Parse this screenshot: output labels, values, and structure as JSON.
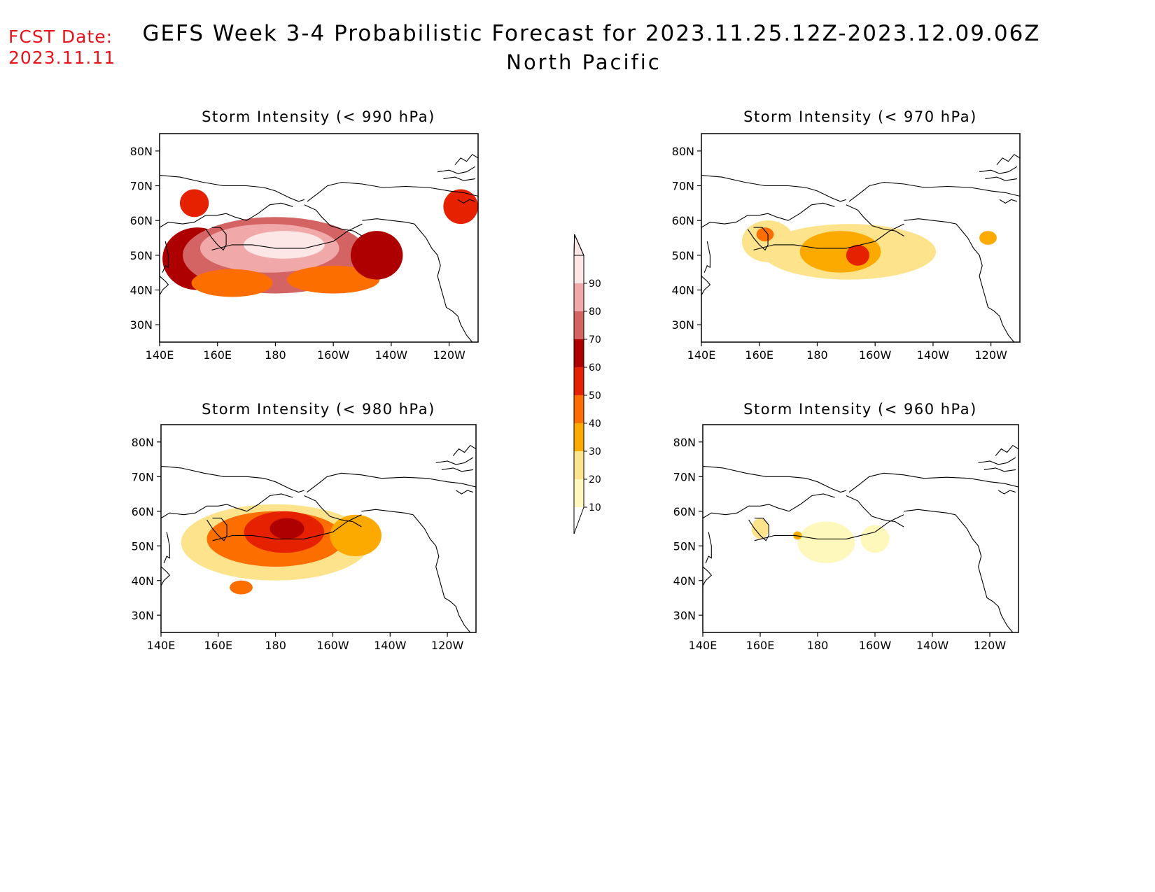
{
  "header": {
    "fcst_label": "FCST Date:",
    "fcst_date": "2023.11.11",
    "title": "GEFS Week 3-4 Probabilistic Forecast for 2023.11.25.12Z-2023.12.09.06Z",
    "subtitle": "North Pacific"
  },
  "axes": {
    "lon_labels": [
      "140E",
      "160E",
      "180",
      "160W",
      "140W",
      "120W"
    ],
    "lat_labels": [
      "80N",
      "70N",
      "60N",
      "50N",
      "40N",
      "30N"
    ],
    "lon_range": [
      140,
      250
    ],
    "lat_range": [
      25,
      85
    ]
  },
  "colorbar": {
    "levels": [
      "10",
      "20",
      "30",
      "40",
      "50",
      "60",
      "70",
      "80",
      "90"
    ],
    "colors": [
      "#fff8bc",
      "#fde48c",
      "#fdaa00",
      "#fd6e00",
      "#e52100",
      "#ae0000",
      "#d46464",
      "#f0a8a8",
      "#fde6e6"
    ]
  },
  "panels": [
    {
      "title": "Storm Intensity (< 990 hPa)",
      "blobs": [
        {
          "lon": 153,
          "lat": 49,
          "rlon": 12,
          "rlat": 9,
          "level": 5
        },
        {
          "lon": 180,
          "lat": 50,
          "rlon": 32,
          "rlat": 11,
          "level": 6
        },
        {
          "lon": 178,
          "lat": 52,
          "rlon": 24,
          "rlat": 7,
          "level": 7
        },
        {
          "lon": 183,
          "lat": 53,
          "rlon": 14,
          "rlat": 4,
          "level": 8
        },
        {
          "lon": 165,
          "lat": 42,
          "rlon": 14,
          "rlat": 4,
          "level": 3
        },
        {
          "lon": 200,
          "lat": 43,
          "rlon": 16,
          "rlat": 4,
          "level": 3
        },
        {
          "lon": 215,
          "lat": 50,
          "rlon": 9,
          "rlat": 7,
          "level": 5
        },
        {
          "lon": 244,
          "lat": 64,
          "rlon": 6,
          "rlat": 5,
          "level": 4
        },
        {
          "lon": 152,
          "lat": 65,
          "rlon": 5,
          "rlat": 4,
          "level": 4
        }
      ]
    },
    {
      "title": "Storm Intensity (< 970 hPa)",
      "blobs": [
        {
          "lon": 191,
          "lat": 51,
          "rlon": 30,
          "rlat": 8,
          "level": 1
        },
        {
          "lon": 163,
          "lat": 54,
          "rlon": 9,
          "rlat": 6,
          "level": 1
        },
        {
          "lon": 188,
          "lat": 51,
          "rlon": 14,
          "rlat": 6,
          "level": 2
        },
        {
          "lon": 194,
          "lat": 50,
          "rlon": 4,
          "rlat": 3,
          "level": 4
        },
        {
          "lon": 162,
          "lat": 56,
          "rlon": 3,
          "rlat": 2,
          "level": 3
        },
        {
          "lon": 239,
          "lat": 55,
          "rlon": 3,
          "rlat": 2,
          "level": 2
        }
      ]
    },
    {
      "title": "Storm Intensity (< 980 hPa)",
      "blobs": [
        {
          "lon": 180,
          "lat": 51,
          "rlon": 33,
          "rlat": 11,
          "level": 1
        },
        {
          "lon": 180,
          "lat": 52,
          "rlon": 24,
          "rlat": 8,
          "level": 3
        },
        {
          "lon": 183,
          "lat": 54,
          "rlon": 14,
          "rlat": 6,
          "level": 4
        },
        {
          "lon": 184,
          "lat": 55,
          "rlon": 6,
          "rlat": 3,
          "level": 5
        },
        {
          "lon": 208,
          "lat": 53,
          "rlon": 9,
          "rlat": 6,
          "level": 2
        },
        {
          "lon": 168,
          "lat": 38,
          "rlon": 4,
          "rlat": 2,
          "level": 3
        }
      ]
    },
    {
      "title": "Storm Intensity (< 960 hPa)",
      "blobs": [
        {
          "lon": 183,
          "lat": 51,
          "rlon": 10,
          "rlat": 6,
          "level": 0
        },
        {
          "lon": 200,
          "lat": 52,
          "rlon": 5,
          "rlat": 4,
          "level": 0
        },
        {
          "lon": 160,
          "lat": 55,
          "rlon": 3,
          "rlat": 3,
          "level": 1
        },
        {
          "lon": 173,
          "lat": 53,
          "rlon": 1.5,
          "rlat": 1.2,
          "level": 2
        }
      ]
    }
  ]
}
